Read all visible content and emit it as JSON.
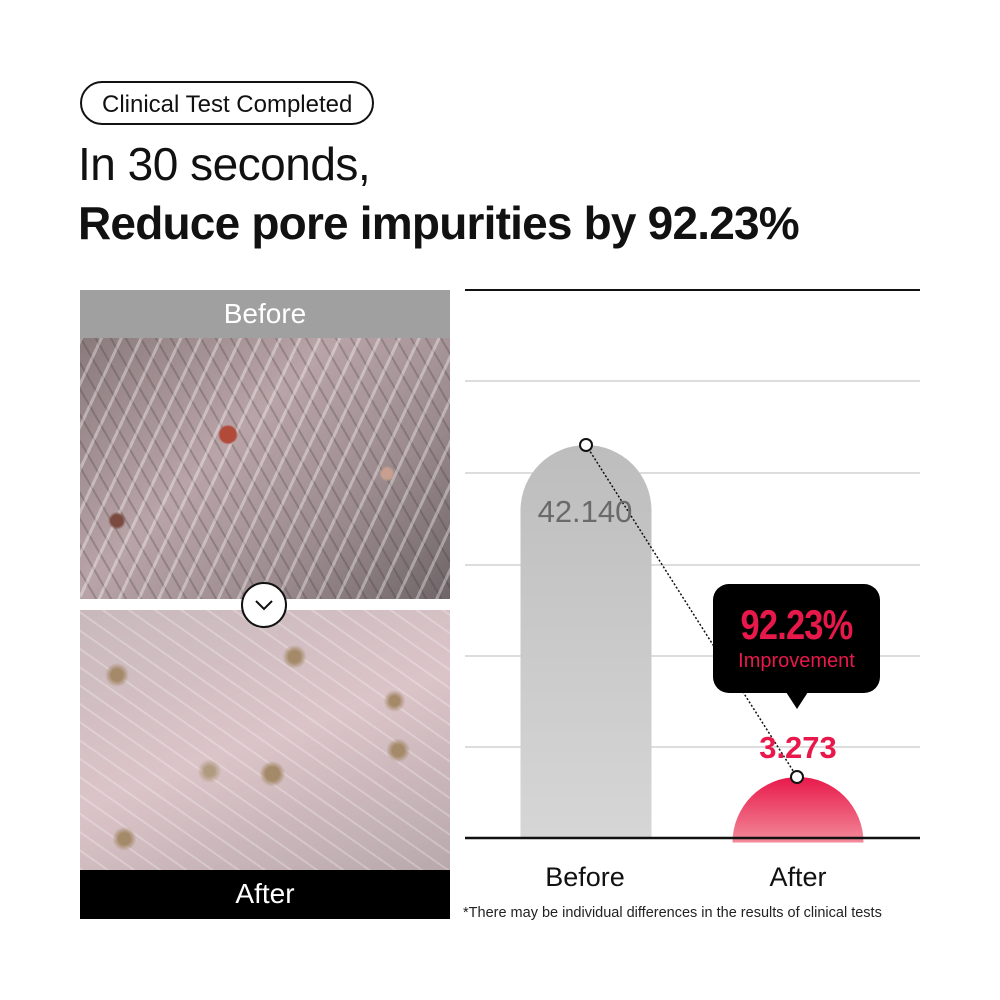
{
  "badge": "Clinical Test Completed",
  "headline_line1": "In 30 seconds,",
  "headline_line2": "Reduce pore impurities by 92.23%",
  "photos": {
    "before_label": "Before",
    "after_label": "After",
    "before_label_bg": "#a0a0a0",
    "after_label_bg": "#000000",
    "divider_icon": "chevron-down-icon"
  },
  "chart_data": {
    "type": "bar",
    "categories": [
      "Before",
      "After"
    ],
    "values": [
      42.14,
      3.273
    ],
    "value_labels": [
      "42.140",
      "3.273"
    ],
    "colors": [
      "#c4c4c4",
      "#e8194a"
    ],
    "grid": true,
    "title": "",
    "xlabel": "",
    "ylabel": "",
    "callout": {
      "value": "92.23%",
      "label": "Improvement"
    }
  },
  "footnote": "*There may be individual differences in the results of clinical tests"
}
